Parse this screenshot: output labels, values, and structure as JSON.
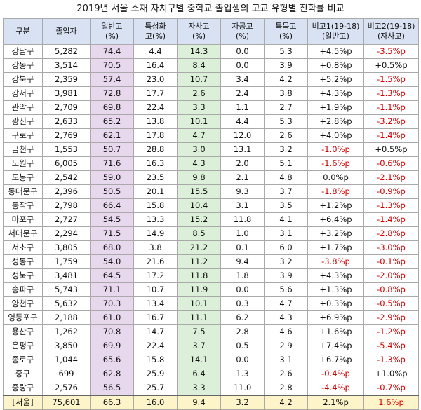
{
  "title": "2019년 서울 소재 자치구별 중학교 졸업생의 고교 유형별 진학률 비교",
  "headers": [
    {
      "l1": "구분",
      "l2": ""
    },
    {
      "l1": "졸업자",
      "l2": ""
    },
    {
      "l1": "일반고",
      "l2": "(%)"
    },
    {
      "l1": "특성화",
      "l2": "고(%)"
    },
    {
      "l1": "자사고",
      "l2": "(%)"
    },
    {
      "l1": "자공고",
      "l2": "(%)"
    },
    {
      "l1": "특목고",
      "l2": "(%)"
    },
    {
      "l1": "비고1(19-18)",
      "l2": "(일반고)"
    },
    {
      "l1": "비고2(19-18)",
      "l2": "(자사고)"
    }
  ],
  "rows": [
    [
      "강남구",
      "5,282",
      "74.4",
      "4.4",
      "14.3",
      "0.0",
      "5.3",
      "+4.5%p",
      "-3.5%p"
    ],
    [
      "강동구",
      "3,514",
      "70.5",
      "16.4",
      "8.4",
      "0.0",
      "3.9",
      "+0.8%p",
      "+0.5%p"
    ],
    [
      "강북구",
      "2,359",
      "57.4",
      "23.0",
      "10.7",
      "3.4",
      "4.2",
      "+5.2%p",
      "-1.5%p"
    ],
    [
      "강서구",
      "3,981",
      "72.8",
      "17.7",
      "2.6",
      "2.4",
      "3.8",
      "+4.3%p",
      "-1.3%p"
    ],
    [
      "관악구",
      "2,709",
      "69.8",
      "22.4",
      "3.3",
      "1.1",
      "2.7",
      "+1.9%p",
      "-1.1%p"
    ],
    [
      "광진구",
      "2,633",
      "65.2",
      "13.8",
      "10.1",
      "4.4",
      "5.3",
      "+2.8%p",
      "-3.2%p"
    ],
    [
      "구로구",
      "2,769",
      "62.1",
      "17.8",
      "4.7",
      "12.0",
      "2.6",
      "+4.0%p",
      "-1.4%p"
    ],
    [
      "금천구",
      "1,553",
      "50.7",
      "28.8",
      "3.0",
      "13.1",
      "3.2",
      "-1.0%p",
      "+0.5%p"
    ],
    [
      "노원구",
      "6,005",
      "71.6",
      "16.3",
      "4.3",
      "2.0",
      "5.1",
      "-1.6%p",
      "-0.6%p"
    ],
    [
      "도봉구",
      "2,542",
      "59.0",
      "23.5",
      "9.8",
      "2.1",
      "4.8",
      "0.0%p",
      "-2.1%p"
    ],
    [
      "동대문구",
      "2,396",
      "50.5",
      "20.1",
      "15.5",
      "9.3",
      "3.7",
      "-1.8%p",
      "-0.9%p"
    ],
    [
      "동작구",
      "2,798",
      "66.4",
      "15.8",
      "10.4",
      "3.1",
      "3.5",
      "+1.2%p",
      "-1.3%p"
    ],
    [
      "마포구",
      "2,727",
      "54.5",
      "13.3",
      "15.2",
      "11.8",
      "4.1",
      "+6.4%p",
      "-1.4%p"
    ],
    [
      "서대문구",
      "2,294",
      "71.5",
      "14.9",
      "8.5",
      "1.0",
      "3.1",
      "+3.2%p",
      "-2.8%p"
    ],
    [
      "서초구",
      "3,805",
      "68.0",
      "3.8",
      "21.2",
      "0.1",
      "6.0",
      "+1.7%p",
      "-3.0%p"
    ],
    [
      "성동구",
      "1,759",
      "54.0",
      "21.6",
      "11.2",
      "9.4",
      "3.2",
      "-3.8%p",
      "-0.1%p"
    ],
    [
      "성북구",
      "3,481",
      "64.5",
      "17.2",
      "11.8",
      "1.8",
      "3.9",
      "+4.3%p",
      "-2.0%p"
    ],
    [
      "송파구",
      "5,743",
      "71.1",
      "10.7",
      "11.9",
      "0.0",
      "5.6",
      "+1.3%p",
      "-0.8%p"
    ],
    [
      "양천구",
      "5,632",
      "70.3",
      "13.4",
      "10.1",
      "0.3",
      "4.7",
      "+0.3%p",
      "-0.5%p"
    ],
    [
      "영등포구",
      "2,188",
      "61.0",
      "16.7",
      "11.1",
      "6.2",
      "4.3",
      "+6.9%p",
      "-2.9%p"
    ],
    [
      "용산구",
      "1,262",
      "70.8",
      "14.7",
      "7.5",
      "2.8",
      "4.6",
      "+1.6%p",
      "-1.2%p"
    ],
    [
      "은평구",
      "3,850",
      "69.9",
      "22.4",
      "3.7",
      "0.5",
      "2.9",
      "+7.4%p",
      "-5.4%p"
    ],
    [
      "종로구",
      "1,044",
      "65.6",
      "15.8",
      "14.1",
      "0.0",
      "3.1",
      "+6.7%p",
      "-1.3%p"
    ],
    [
      "중구",
      "699",
      "62.8",
      "25.9",
      "6.4",
      "1.3",
      "2.6",
      "-0.4%p",
      "+1.0%p"
    ],
    [
      "중랑구",
      "2,576",
      "56.5",
      "25.7",
      "3.3",
      "11.0",
      "2.8",
      "-4.4%p",
      "-0.7%p"
    ]
  ],
  "total": [
    "[서울]",
    "75,601",
    "66.3",
    "16.0",
    "9.4",
    "3.2",
    "4.2",
    "2.1%p",
    "1.6%p"
  ]
}
